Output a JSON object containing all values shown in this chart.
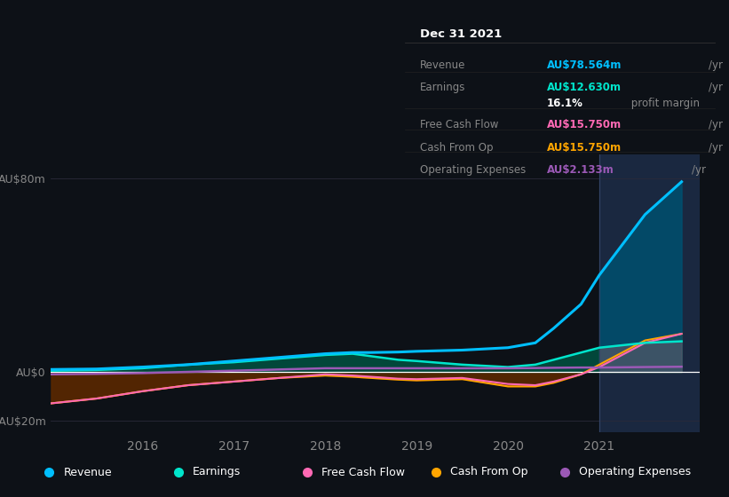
{
  "bg_color": "#0d1117",
  "chart_bg": "#0d1117",
  "highlight_bg": "#1a2840",
  "years": [
    2015.0,
    2015.5,
    2016.0,
    2016.5,
    2017.0,
    2017.5,
    2018.0,
    2018.3,
    2018.5,
    2018.8,
    2019.0,
    2019.5,
    2020.0,
    2020.3,
    2020.5,
    2020.8,
    2021.0,
    2021.5,
    2021.9
  ],
  "revenue": [
    1.0,
    1.2,
    2.0,
    3.0,
    4.5,
    6.0,
    7.5,
    8.0,
    8.0,
    8.2,
    8.5,
    9.0,
    10.0,
    12.0,
    18.0,
    28.0,
    40.0,
    65.0,
    78.564
  ],
  "earnings": [
    0.5,
    0.8,
    1.5,
    3.0,
    4.0,
    5.5,
    7.0,
    7.5,
    6.5,
    5.0,
    4.5,
    3.0,
    2.0,
    3.0,
    5.0,
    8.0,
    10.0,
    12.0,
    12.63
  ],
  "free_cash_flow": [
    -13.0,
    -11.0,
    -8.0,
    -5.5,
    -4.0,
    -2.5,
    -1.0,
    -1.5,
    -2.0,
    -2.8,
    -3.0,
    -2.5,
    -5.0,
    -5.5,
    -4.0,
    -1.0,
    2.0,
    12.0,
    15.75
  ],
  "cash_from_op": [
    -13.0,
    -11.0,
    -8.0,
    -5.5,
    -4.0,
    -2.5,
    -1.5,
    -2.0,
    -2.5,
    -3.2,
    -3.5,
    -3.0,
    -6.0,
    -6.0,
    -4.5,
    -1.0,
    3.0,
    13.0,
    15.75
  ],
  "op_expenses": [
    -1.0,
    -0.8,
    -0.5,
    0.0,
    0.5,
    1.0,
    1.5,
    1.5,
    1.5,
    1.5,
    1.5,
    1.5,
    1.5,
    1.6,
    1.7,
    1.8,
    1.8,
    2.0,
    2.133
  ],
  "revenue_color": "#00bfff",
  "earnings_color": "#00e5cc",
  "fcf_color": "#ff69b4",
  "cashop_color": "#ffa500",
  "opex_color": "#9b59b6",
  "revenue_fill": "#004f6f",
  "earnings_fill": "#005544",
  "cashop_fill_neg": "#5a2800",
  "cashop_fill_pos": "#7a4000",
  "highlight_x": 2021.0,
  "xlim": [
    2015.0,
    2022.1
  ],
  "ylim_min": -25,
  "ylim_max": 90,
  "yticks": [
    -20,
    0,
    80
  ],
  "ytick_labels": [
    "-AU$20m",
    "AU$0",
    "AU$80m"
  ],
  "xticks": [
    2016,
    2017,
    2018,
    2019,
    2020,
    2021
  ],
  "tooltip_date": "Dec 31 2021",
  "tooltip_rows": [
    {
      "label": "Revenue",
      "value": "AU$78.564m",
      "unit": "/yr",
      "color": "#00bfff"
    },
    {
      "label": "Earnings",
      "value": "AU$12.630m",
      "unit": "/yr",
      "color": "#00e5cc"
    },
    {
      "label": "",
      "value": "16.1%",
      "unit": " profit margin",
      "color": "#ffffff"
    },
    {
      "label": "Free Cash Flow",
      "value": "AU$15.750m",
      "unit": "/yr",
      "color": "#ff69b4"
    },
    {
      "label": "Cash From Op",
      "value": "AU$15.750m",
      "unit": "/yr",
      "color": "#ffa500"
    },
    {
      "label": "Operating Expenses",
      "value": "AU$2.133m",
      "unit": "/yr",
      "color": "#9b59b6"
    }
  ],
  "legend_items": [
    {
      "label": "Revenue",
      "color": "#00bfff"
    },
    {
      "label": "Earnings",
      "color": "#00e5cc"
    },
    {
      "label": "Free Cash Flow",
      "color": "#ff69b4"
    },
    {
      "label": "Cash From Op",
      "color": "#ffa500"
    },
    {
      "label": "Operating Expenses",
      "color": "#9b59b6"
    }
  ]
}
